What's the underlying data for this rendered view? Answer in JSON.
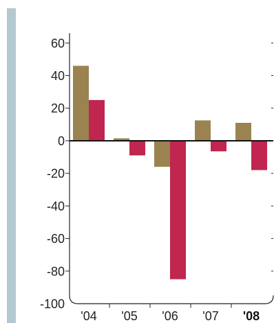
{
  "chart_data": {
    "type": "bar",
    "categories": [
      "'04",
      "'05",
      "'06",
      "'07",
      "'08"
    ],
    "highlight_category": "'08",
    "series": [
      {
        "values": [
          46,
          1.5,
          -16,
          12.5,
          11
        ],
        "color": "#9a8350"
      },
      {
        "values": [
          25,
          -9,
          -85,
          -6.5,
          -18
        ],
        "color": "#c0264f"
      }
    ],
    "ylim": [
      -100,
      65
    ],
    "yticks": [
      60,
      40,
      20,
      0,
      -20,
      -40,
      -60,
      -80,
      -100
    ],
    "title": "",
    "xlabel": "",
    "ylabel": "",
    "grid": false,
    "legend": "none"
  },
  "colors": {
    "side_bar": "#b4c8d0",
    "axis": "#222222",
    "zero_line": "#111111"
  }
}
